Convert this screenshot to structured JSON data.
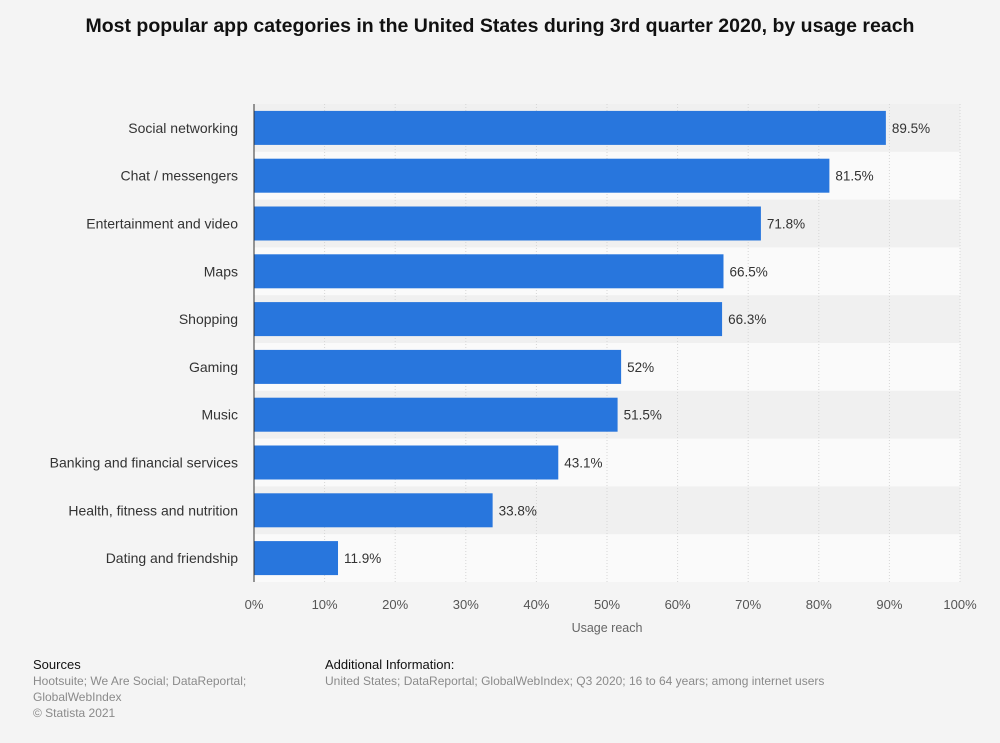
{
  "chart_data": {
    "type": "bar",
    "orientation": "horizontal",
    "title": "Most popular app categories in the United States during 3rd quarter 2020, by usage reach",
    "xlabel": "Usage reach",
    "ylabel": "",
    "xlim": [
      0,
      100
    ],
    "x_ticks": [
      "0%",
      "10%",
      "20%",
      "30%",
      "40%",
      "50%",
      "60%",
      "70%",
      "80%",
      "90%",
      "100%"
    ],
    "grid": true,
    "categories": [
      "Social networking",
      "Chat / messengers",
      "Entertainment and video",
      "Maps",
      "Shopping",
      "Gaming",
      "Music",
      "Banking and financial services",
      "Health, fitness and nutrition",
      "Dating and friendship"
    ],
    "values": [
      89.5,
      81.5,
      71.8,
      66.5,
      66.3,
      52,
      51.5,
      43.1,
      33.8,
      11.9
    ],
    "data_labels": [
      "89.5%",
      "81.5%",
      "71.8%",
      "66.5%",
      "66.3%",
      "52%",
      "51.5%",
      "43.1%",
      "33.8%",
      "11.9%"
    ],
    "bar_color": "#2876dd"
  },
  "footer": {
    "sources_heading": "Sources",
    "sources_line1": "Hootsuite; We Are Social; DataReportal;",
    "sources_line2": "GlobalWebIndex",
    "copyright": "© Statista 2021",
    "additional_heading": "Additional Information:",
    "additional_text": "United States; DataReportal; GlobalWebIndex; Q3 2020; 16 to 64 years; among internet users"
  }
}
